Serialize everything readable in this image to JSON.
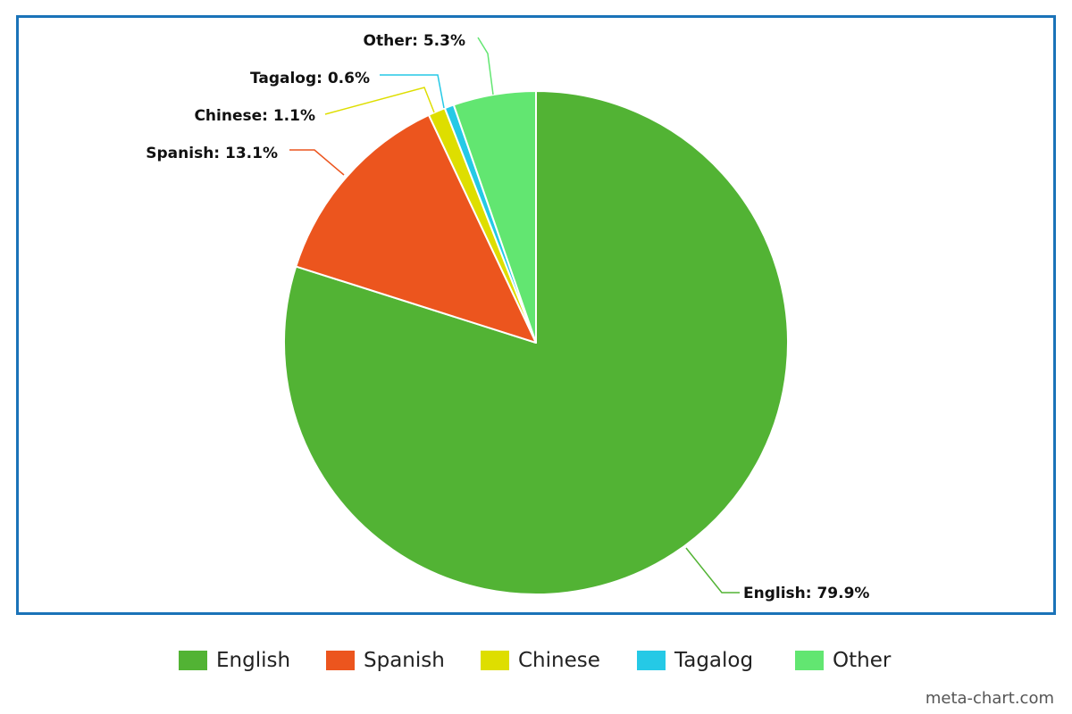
{
  "chart_data": {
    "type": "pie",
    "categories": [
      "English",
      "Spanish",
      "Chinese",
      "Tagalog",
      "Other"
    ],
    "values": [
      79.9,
      13.1,
      1.1,
      0.6,
      5.3
    ],
    "labels": [
      "English: 79.9%",
      "Spanish: 13.1%",
      "Chinese: 1.1%",
      "Tagalog: 0.6%",
      "Other: 5.3%"
    ],
    "colors": [
      "#52b334",
      "#ec551e",
      "#dede00",
      "#25c9e6",
      "#62e671"
    ],
    "start": "12 o'clock",
    "direction": "clockwise",
    "legend_position": "bottom"
  },
  "legend": {
    "items": [
      {
        "label": "English",
        "color": "#52b334"
      },
      {
        "label": "Spanish",
        "color": "#ec551e"
      },
      {
        "label": "Chinese",
        "color": "#dede00"
      },
      {
        "label": "Tagalog",
        "color": "#25c9e6"
      },
      {
        "label": "Other",
        "color": "#62e671"
      }
    ]
  },
  "watermark": "meta-chart.com",
  "frame_color": "#1a73b8"
}
